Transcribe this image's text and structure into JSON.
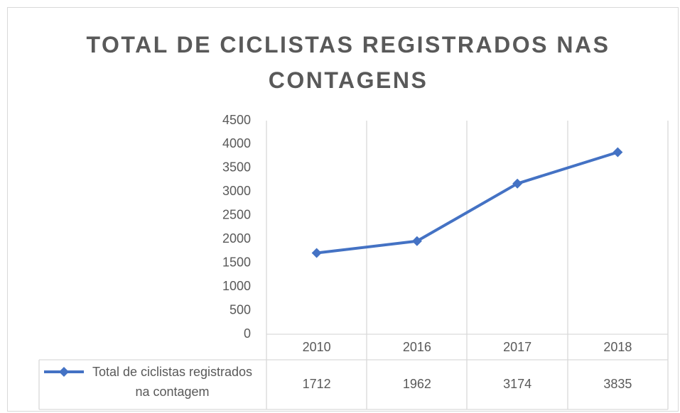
{
  "chart_data": {
    "type": "line",
    "title": "TOTAL DE CICLISTAS REGISTRADOS NAS CONTAGENS",
    "categories": [
      "2010",
      "2016",
      "2017",
      "2018"
    ],
    "series": [
      {
        "name": "Total de ciclistas registrados na contagem",
        "color": "#4472c4",
        "values": [
          1712,
          1962,
          3174,
          3835
        ]
      }
    ],
    "ylim": [
      0,
      4500
    ],
    "yticks": [
      0,
      500,
      1000,
      1500,
      2000,
      2500,
      3000,
      3500,
      4000,
      4500
    ],
    "data_table": true
  }
}
